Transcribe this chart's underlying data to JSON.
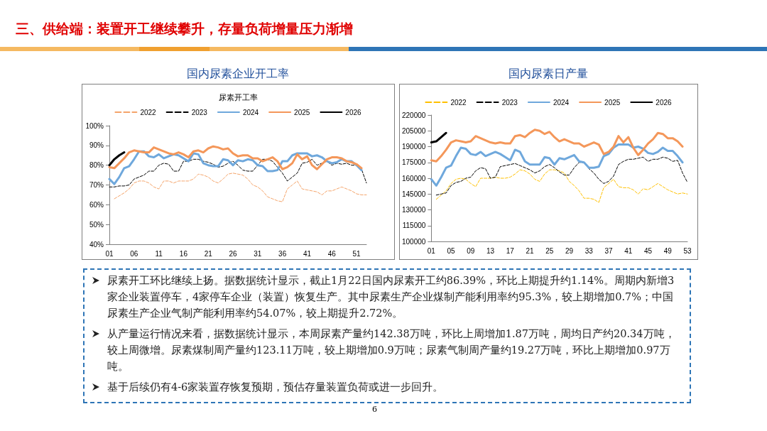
{
  "chart_data": [
    {
      "type": "line",
      "title": "国内尿素企业开工率",
      "subtitle": "尿素开工率",
      "legend": "top",
      "marker": "none",
      "categories": [
        "01",
        null,
        null,
        null,
        null,
        "06",
        null,
        null,
        null,
        null,
        "11",
        null,
        null,
        null,
        null,
        "16",
        null,
        null,
        null,
        null,
        "21",
        null,
        null,
        null,
        null,
        "26",
        null,
        null,
        null,
        null,
        "31",
        null,
        null,
        null,
        null,
        "36",
        null,
        null,
        null,
        null,
        "41",
        null,
        null,
        null,
        null,
        "46",
        null,
        null,
        null,
        null,
        "51",
        null,
        null
      ],
      "ylim": [
        40,
        100
      ],
      "yticks": [
        {
          "value": 40,
          "label": "40%"
        },
        {
          "value": 50,
          "label": "50%"
        },
        {
          "value": 60,
          "label": "60%"
        },
        {
          "value": 70,
          "label": "70%"
        },
        {
          "value": 80,
          "label": "80%"
        },
        {
          "value": 90,
          "label": "90%"
        },
        {
          "value": 100,
          "label": "100%"
        }
      ],
      "series": [
        {
          "name": "2022",
          "color": "#f4a46a",
          "line_style": "dashed",
          "values": [
            null,
            63,
            64.5,
            66,
            68,
            71,
            72,
            72,
            71,
            69,
            68,
            72,
            72,
            71,
            72,
            72,
            72,
            73,
            75.5,
            75,
            74,
            72,
            71,
            73,
            75.5,
            76,
            75.5,
            75,
            73,
            70,
            69,
            67,
            64,
            63,
            62,
            61.5,
            68,
            70,
            72,
            68,
            67.5,
            67,
            66.5,
            65,
            67,
            67,
            68,
            69,
            68,
            67,
            65.5,
            65,
            65
          ]
        },
        {
          "name": "2023",
          "color": "#000000",
          "line_style": "dashed",
          "values": [
            69,
            69,
            69.5,
            69.5,
            70,
            73,
            74,
            75,
            77,
            77,
            80,
            81,
            80.5,
            77,
            77,
            82,
            82,
            83,
            83,
            82,
            81.5,
            80.5,
            79,
            79.5,
            81,
            82,
            80,
            77.5,
            77,
            77,
            80,
            83,
            83,
            82,
            79,
            76,
            72,
            74,
            76,
            81,
            81.5,
            83,
            80,
            81,
            82,
            80,
            81,
            80.5,
            81,
            80,
            80,
            78,
            71
          ]
        },
        {
          "name": "2024",
          "color": "#6fa8dc",
          "line_style": "solid",
          "values": [
            73,
            70.5,
            74,
            78.5,
            79.5,
            83,
            87,
            87,
            84.5,
            84,
            85.5,
            83.5,
            84.5,
            85.5,
            85,
            83.5,
            82,
            86,
            85.5,
            81,
            80,
            79.5,
            79.5,
            83,
            82.5,
            80,
            82.5,
            82,
            83,
            82.5,
            80,
            79.5,
            77,
            77,
            77.5,
            82,
            82,
            85,
            86,
            86,
            86,
            84.5,
            85,
            84,
            82,
            81,
            81.5,
            83,
            82,
            82,
            80,
            77.5,
            null
          ]
        },
        {
          "name": "2025",
          "color": "#f4975a",
          "line_style": "solid",
          "values": [
            79,
            78.5,
            81,
            83.5,
            86.5,
            87.5,
            87,
            86.5,
            86.5,
            89,
            88,
            87,
            86,
            85.5,
            86.5,
            85.5,
            84,
            87,
            87.5,
            86.5,
            88.5,
            89.5,
            89,
            88,
            88.5,
            86,
            84.5,
            85,
            85,
            83.5,
            83.5,
            82,
            83,
            84,
            82,
            78,
            79,
            81,
            85.5,
            83,
            84.5,
            80,
            78,
            80.5,
            83,
            84,
            84,
            83.5,
            82,
            81.5,
            80.5,
            78.5,
            null
          ]
        },
        {
          "name": "2026",
          "color": "#000000",
          "line_style": "solid",
          "values": [
            80,
            83,
            85,
            86.5,
            null,
            null,
            null,
            null,
            null,
            null,
            null,
            null,
            null,
            null,
            null,
            null,
            null,
            null,
            null,
            null,
            null,
            null,
            null,
            null,
            null,
            null,
            null,
            null,
            null,
            null,
            null,
            null,
            null,
            null,
            null,
            null,
            null,
            null,
            null,
            null,
            null,
            null,
            null,
            null,
            null,
            null,
            null,
            null,
            null,
            null,
            null,
            null,
            null
          ]
        }
      ]
    },
    {
      "type": "line",
      "title": "国内尿素日产量",
      "legend": "top",
      "marker": "none",
      "categories": [
        "01",
        null,
        null,
        null,
        "05",
        null,
        null,
        null,
        "09",
        null,
        null,
        null,
        "13",
        null,
        null,
        null,
        "17",
        null,
        null,
        null,
        "21",
        null,
        null,
        null,
        "25",
        null,
        null,
        null,
        "29",
        null,
        null,
        null,
        "33",
        null,
        null,
        null,
        "37",
        null,
        null,
        null,
        "41",
        null,
        null,
        null,
        "45",
        null,
        null,
        null,
        "49",
        null,
        null,
        null,
        "53"
      ],
      "ylim": [
        100000,
        220000
      ],
      "yticks": [
        100000,
        115000,
        130000,
        145000,
        160000,
        175000,
        190000,
        205000,
        220000
      ],
      "series": [
        {
          "name": "2022",
          "color": "#ffc000",
          "line_style": "dashed",
          "values": [
            null,
            140000,
            144000,
            148000,
            155000,
            159000,
            160000,
            159000,
            155000,
            152000,
            160000,
            160000,
            160000,
            161000,
            160000,
            160000,
            161000,
            164000,
            168000,
            167000,
            164000,
            159000,
            157000,
            164000,
            168000,
            168000,
            167000,
            165000,
            157000,
            153000,
            148000,
            141000,
            141000,
            140000,
            137000,
            151000,
            155000,
            159000,
            152000,
            151000,
            151000,
            149000,
            145000,
            150000,
            149000,
            152000,
            155000,
            152000,
            149000,
            147000,
            145000,
            146000,
            145000
          ]
        },
        {
          "name": "2023",
          "color": "#000000",
          "line_style": "dashed",
          "values": [
            null,
            144000,
            145000,
            146000,
            153000,
            156000,
            157000,
            160000,
            161000,
            167000,
            170000,
            169000,
            160000,
            161000,
            171000,
            172000,
            173000,
            174000,
            172000,
            170000,
            168000,
            165000,
            167000,
            171000,
            173000,
            170000,
            166000,
            163000,
            163000,
            170000,
            175000,
            175000,
            169000,
            165000,
            159000,
            155000,
            157000,
            162000,
            173000,
            176000,
            178000,
            178000,
            179000,
            180000,
            176000,
            178000,
            178000,
            180000,
            179000,
            176000,
            177000,
            165000,
            156000
          ]
        },
        {
          "name": "2024",
          "color": "#6fa8dc",
          "line_style": "solid",
          "values": [
            159000,
            153000,
            161000,
            170000,
            172000,
            181000,
            189000,
            188000,
            183000,
            182000,
            185000,
            181000,
            183000,
            185000,
            183000,
            180000,
            177000,
            187000,
            185000,
            176000,
            173000,
            173000,
            173000,
            180000,
            179000,
            173000,
            179000,
            178000,
            180000,
            182000,
            176000,
            175000,
            170000,
            170000,
            171000,
            181000,
            183000,
            189000,
            192000,
            192000,
            192000,
            189000,
            190000,
            188000,
            184000,
            183000,
            185000,
            189000,
            186000,
            186000,
            181000,
            175000,
            null
          ]
        },
        {
          "name": "2025",
          "color": "#f4975a",
          "line_style": "solid",
          "values": [
            177000,
            176000,
            181000,
            187000,
            194000,
            196000,
            195000,
            194000,
            195000,
            200000,
            198000,
            196000,
            194000,
            193000,
            194000,
            193000,
            193000,
            200000,
            201000,
            199000,
            203000,
            206000,
            205000,
            202000,
            204000,
            199000,
            195000,
            197000,
            195000,
            193000,
            193000,
            190000,
            192000,
            194000,
            192000,
            183000,
            185000,
            190000,
            200000,
            194000,
            199000,
            189000,
            182000,
            187000,
            193000,
            197000,
            203000,
            202000,
            198000,
            198000,
            195000,
            190000,
            null
          ]
        },
        {
          "name": "2026",
          "color": "#000000",
          "line_style": "solid",
          "values": [
            194000,
            195000,
            199000,
            203000,
            null,
            null,
            null,
            null,
            null,
            null,
            null,
            null,
            null,
            null,
            null,
            null,
            null,
            null,
            null,
            null,
            null,
            null,
            null,
            null,
            null,
            null,
            null,
            null,
            null,
            null,
            null,
            null,
            null,
            null,
            null,
            null,
            null,
            null,
            null,
            null,
            null,
            null,
            null,
            null,
            null,
            null,
            null,
            null,
            null,
            null,
            null,
            null,
            null
          ]
        }
      ]
    },
    {
      "type": "other",
      "title": "三、供给端：装置开工继续攀升，存量负荷增量压力渐增",
      "annotations": [
        "尿素开工环比继续上扬。据数据统计显示，截止1月22日国内尿素开工约86.39%，环比上期提升约1.14%。周期内新增3家企业装置停车，4家停车企业（装置）恢复生产。其中尿素生产企业煤制产能利用率约95.3%，较上期增加0.7%；中国尿素生产企业气制产能利用率约54.07%，较上期提升2.72%。",
        "从产量运行情况来看，据数据统计显示，本周尿素产量约142.38万吨，环比上周增加1.87万吨，周均日产约20.34万吨，较上周微增。尿素煤制周产量约123.11万吨，较上期增加0.9万吨；尿素气制周产量约19.27万吨，环比上期增加0.97万吨。",
        "基于后续仍有4-6家装置存恢复预期，预估存量装置负荷或进一步回升。",
        "6"
      ]
    }
  ]
}
